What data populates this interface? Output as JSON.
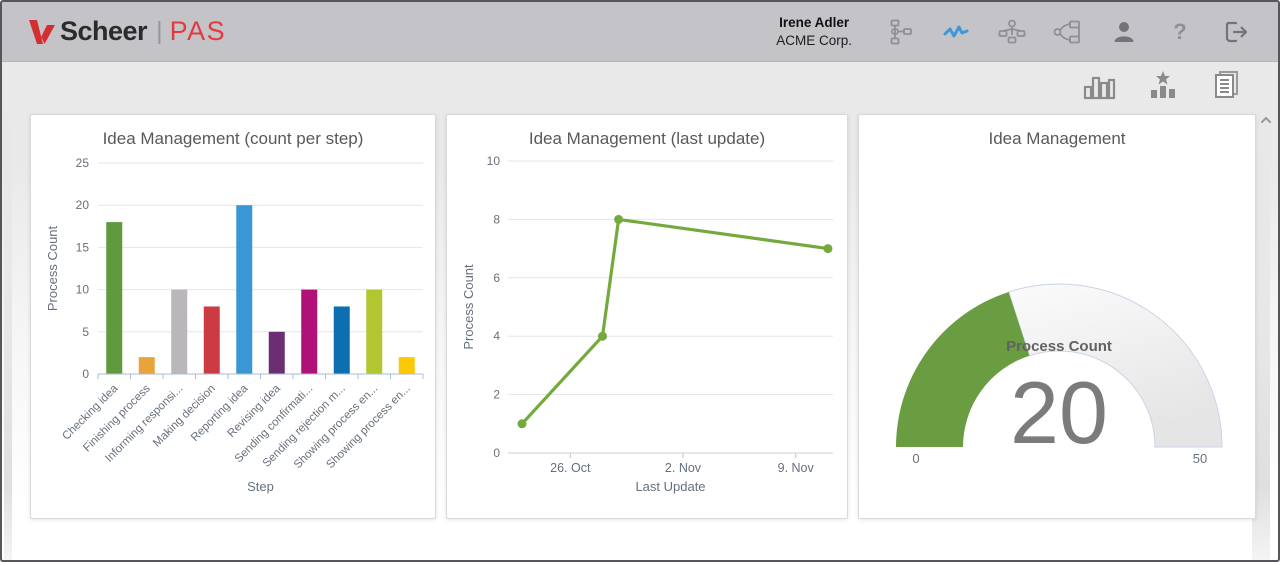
{
  "header": {
    "logo": {
      "brand": "Scheer",
      "divider": "|",
      "product": "PAS"
    },
    "user": {
      "name": "Irene Adler",
      "company": "ACME Corp."
    },
    "icons": [
      "process-tree",
      "monitoring-pulse",
      "org-chart",
      "process-diagram",
      "user-profile",
      "help",
      "logout"
    ]
  },
  "toolbar": {
    "icons": [
      "bar-charts",
      "favorite-chart",
      "reports"
    ]
  },
  "scrollbar": {
    "up_arrow": "chevron-up"
  },
  "colors": {
    "header_bg": "#c4c4c8",
    "brand_red": "#d32f33",
    "active_icon_blue": "#3e97d8",
    "icon_grey": "#8f9093",
    "axis_blue_grey": "#a9bdd6",
    "grid_grey": "#e6e6e6",
    "label_grey": "#66707c",
    "title_grey": "#58595b"
  },
  "chart_data": [
    {
      "type": "bar",
      "title": "Idea Management (count per step)",
      "xlabel": "Step",
      "ylabel": "Process Count",
      "categories": [
        "Checking idea",
        "Finishing process",
        "Informing responsi...",
        "Making decision",
        "Reporting idea",
        "Revising idea",
        "Sending confirmati...",
        "Sending rejection m...",
        "Showing process en...",
        "Showing process en..."
      ],
      "values": [
        18,
        2,
        10,
        8,
        20,
        5,
        10,
        8,
        10,
        2
      ],
      "bar_colors": [
        "#62993e",
        "#e8a33d",
        "#b9b6bc",
        "#cc3b44",
        "#3b97d3",
        "#6b2e70",
        "#b01179",
        "#0e6fb0",
        "#b2c62f",
        "#fdc805"
      ],
      "ylim": [
        0,
        25
      ],
      "ytick_step": 5,
      "grid": true,
      "legend": "none"
    },
    {
      "type": "line",
      "title": "Idea Management (last update)",
      "xlabel": "Last Update",
      "ylabel": "Process Count",
      "points": [
        {
          "date": "23. Oct",
          "day": 0,
          "value": 1
        },
        {
          "date": "28. Oct",
          "day": 5,
          "value": 4
        },
        {
          "date": "29. Oct",
          "day": 6,
          "value": 8
        },
        {
          "date": "11. Nov",
          "day": 19,
          "value": 7
        }
      ],
      "xticks": [
        {
          "day": 3,
          "label": "26. Oct"
        },
        {
          "day": 10,
          "label": "2. Nov"
        },
        {
          "day": 17,
          "label": "9. Nov"
        }
      ],
      "ylim": [
        0,
        10
      ],
      "ytick_step": 2,
      "line_color": "#74a93c",
      "grid": true,
      "legend": "none"
    },
    {
      "type": "gauge",
      "title": "Idea Management",
      "label": "Process Count",
      "value": 20,
      "min": 0,
      "max": 50,
      "min_label": "0",
      "max_label": "50",
      "arc_color": "#6a9c42",
      "value_color": "#7b7b7b",
      "track_border": "#c9d4e6"
    }
  ]
}
